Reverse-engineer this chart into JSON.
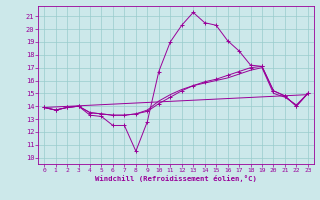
{
  "xlabel": "Windchill (Refroidissement éolien,°C)",
  "background_color": "#cce8ea",
  "grid_color": "#99cccc",
  "line_color": "#990099",
  "xlim": [
    -0.5,
    23.5
  ],
  "ylim": [
    9.5,
    21.8
  ],
  "yticks": [
    10,
    11,
    12,
    13,
    14,
    15,
    16,
    17,
    18,
    19,
    20,
    21
  ],
  "xticks": [
    0,
    1,
    2,
    3,
    4,
    5,
    6,
    7,
    8,
    9,
    10,
    11,
    12,
    13,
    14,
    15,
    16,
    17,
    18,
    19,
    20,
    21,
    22,
    23
  ],
  "line1_x": [
    0,
    1,
    2,
    3,
    4,
    5,
    6,
    7,
    8,
    9,
    10,
    11,
    12,
    13,
    14,
    15,
    16,
    17,
    18,
    19,
    20,
    21,
    22,
    23
  ],
  "line1_y": [
    13.9,
    13.7,
    13.9,
    14.0,
    13.3,
    13.2,
    12.5,
    12.5,
    10.5,
    12.8,
    16.7,
    19.0,
    20.3,
    21.3,
    20.5,
    20.3,
    19.1,
    18.3,
    17.2,
    17.1,
    15.2,
    14.8,
    14.0,
    15.0
  ],
  "line2_x": [
    0,
    1,
    2,
    3,
    4,
    5,
    6,
    7,
    8,
    9,
    10,
    11,
    12,
    13,
    14,
    15,
    16,
    17,
    18,
    19,
    20,
    21,
    22,
    23
  ],
  "line2_y": [
    13.9,
    13.7,
    13.9,
    14.0,
    13.5,
    13.4,
    13.3,
    13.3,
    13.4,
    13.6,
    14.2,
    14.7,
    15.2,
    15.6,
    15.9,
    16.1,
    16.4,
    16.7,
    17.0,
    17.1,
    15.2,
    14.8,
    14.0,
    15.0
  ],
  "line3_x": [
    0,
    23
  ],
  "line3_y": [
    13.9,
    14.9
  ],
  "line4_x": [
    0,
    1,
    2,
    3,
    4,
    5,
    6,
    7,
    8,
    9,
    10,
    11,
    12,
    13,
    14,
    15,
    16,
    17,
    18,
    19,
    20,
    21,
    22,
    23
  ],
  "line4_y": [
    13.9,
    13.7,
    13.9,
    14.0,
    13.5,
    13.4,
    13.3,
    13.3,
    13.4,
    13.7,
    14.4,
    14.9,
    15.3,
    15.6,
    15.8,
    16.0,
    16.2,
    16.5,
    16.8,
    17.0,
    15.0,
    14.7,
    14.1,
    15.0
  ]
}
